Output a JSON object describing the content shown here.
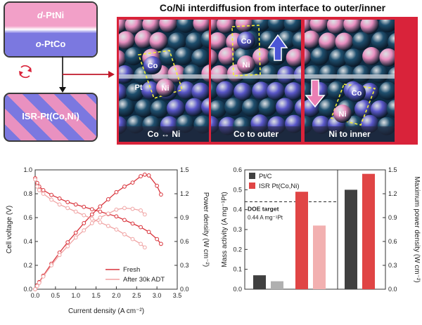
{
  "schematic": {
    "top_layer_prefix": "d",
    "top_layer_suffix": "-PtNi",
    "bottom_layer_prefix": "o",
    "bottom_layer_suffix": "-PtCo",
    "result_label": "ISR-Pt(Co,Ni)",
    "cycle_icon": "refresh-cycle-icon"
  },
  "interdiffusion": {
    "title": "Co/Ni interdiffusion from interface to outer/inner",
    "panels": [
      {
        "caption": "Co ↔ Ni",
        "labels": [
          "Co",
          "Ni",
          "Pt"
        ]
      },
      {
        "caption": "Co to outer",
        "labels": [
          "Co",
          "Ni"
        ]
      },
      {
        "caption": "Ni to inner",
        "labels": [
          "Co",
          "Ni"
        ]
      }
    ],
    "colors": {
      "pt": "#1f4f6e",
      "co": "#5a57c9",
      "ni": "#e98fc0",
      "arrow_up": "#4b55d6",
      "arrow_down": "#ea7fb5",
      "frame": "#d9233a"
    }
  },
  "chart_data": [
    {
      "type": "line",
      "xlabel": "Current density (A cm⁻²)",
      "ylabel": "Cell voltage (V)",
      "y2label": "Power density (W cm⁻²)",
      "xlim": [
        0,
        3.5
      ],
      "ylim": [
        0,
        1.0
      ],
      "y2lim": [
        0,
        1.5
      ],
      "xticks": [
        "0.0",
        "0.5",
        "1.0",
        "1.5",
        "2.0",
        "2.5",
        "3.0",
        "3.5"
      ],
      "yticks": [
        "0.0",
        "0.2",
        "0.4",
        "0.6",
        "0.8",
        "1.0"
      ],
      "y2ticks": [
        "0.0",
        "0.3",
        "0.6",
        "0.9",
        "1.2",
        "1.5"
      ],
      "legend_position": "bottom-right",
      "series": [
        {
          "name": "Fresh",
          "color": "#d9323a",
          "axis": "left",
          "x": [
            0,
            0.05,
            0.1,
            0.2,
            0.4,
            0.6,
            0.8,
            1.0,
            1.2,
            1.4,
            1.6,
            1.8,
            2.0,
            2.2,
            2.4,
            2.6,
            2.8,
            3.0,
            3.1
          ],
          "y": [
            0.93,
            0.89,
            0.86,
            0.83,
            0.79,
            0.76,
            0.73,
            0.71,
            0.69,
            0.67,
            0.65,
            0.63,
            0.61,
            0.58,
            0.55,
            0.52,
            0.48,
            0.42,
            0.38
          ]
        },
        {
          "name": "Fresh",
          "color": "#d9323a",
          "axis": "right",
          "x": [
            0,
            0.05,
            0.1,
            0.2,
            0.4,
            0.6,
            0.8,
            1.0,
            1.2,
            1.4,
            1.6,
            1.8,
            2.0,
            2.2,
            2.4,
            2.6,
            2.7,
            2.8,
            3.0,
            3.1
          ],
          "y": [
            0.0,
            0.05,
            0.09,
            0.17,
            0.32,
            0.46,
            0.59,
            0.71,
            0.83,
            0.94,
            1.04,
            1.13,
            1.22,
            1.29,
            1.34,
            1.42,
            1.44,
            1.43,
            1.3,
            1.19
          ]
        },
        {
          "name": "After 30k ADT",
          "color": "#f0a4a4",
          "axis": "left",
          "x": [
            0,
            0.05,
            0.1,
            0.2,
            0.4,
            0.6,
            0.8,
            1.0,
            1.2,
            1.4,
            1.6,
            1.8,
            2.0,
            2.2,
            2.4,
            2.6,
            2.7
          ],
          "y": [
            0.92,
            0.86,
            0.83,
            0.8,
            0.75,
            0.71,
            0.68,
            0.65,
            0.62,
            0.59,
            0.56,
            0.53,
            0.5,
            0.46,
            0.42,
            0.38,
            0.35
          ]
        },
        {
          "name": "After 30k ADT",
          "color": "#f0a4a4",
          "axis": "right",
          "x": [
            0,
            0.05,
            0.1,
            0.2,
            0.4,
            0.6,
            0.8,
            1.0,
            1.2,
            1.4,
            1.6,
            1.8,
            2.0,
            2.2,
            2.4,
            2.6,
            2.7
          ],
          "y": [
            0.0,
            0.04,
            0.08,
            0.16,
            0.3,
            0.43,
            0.54,
            0.65,
            0.74,
            0.83,
            0.9,
            0.95,
            1.0,
            1.02,
            1.01,
            0.99,
            0.94
          ]
        }
      ]
    },
    {
      "type": "bar",
      "ylabel": "Mass activity (A mg⁻¹Pt)",
      "y2label": "Maximum power density (W cm⁻²)",
      "ylim": [
        0,
        0.6
      ],
      "y2lim": [
        0,
        1.5
      ],
      "yticks": [
        "0.0",
        "0.1",
        "0.2",
        "0.3",
        "0.4",
        "0.5",
        "0.6"
      ],
      "y2ticks": [
        "0.0",
        "0.3",
        "0.6",
        "0.9",
        "1.2",
        "1.5"
      ],
      "legend_position": "top-left",
      "legend": [
        {
          "name": "Pt/C",
          "color": "#404040"
        },
        {
          "name": "ISR Pt(Co,Ni)",
          "color": "#e04545"
        }
      ],
      "annotation": {
        "title": "DOE target",
        "text": "0.44 A mg⁻¹Pt",
        "value": 0.44
      },
      "bars": [
        {
          "group": "mass_activity",
          "state": "Fresh",
          "series": "Pt/C",
          "axis": "left",
          "value": 0.07,
          "color": "#404040"
        },
        {
          "group": "mass_activity",
          "state": "After ADT",
          "series": "Pt/C",
          "axis": "left",
          "value": 0.04,
          "color": "#b0b0b0"
        },
        {
          "group": "mass_activity",
          "state": "Fresh",
          "series": "ISR Pt(Co,Ni)",
          "axis": "left",
          "value": 0.49,
          "color": "#e04545"
        },
        {
          "group": "mass_activity",
          "state": "After ADT",
          "series": "ISR Pt(Co,Ni)",
          "axis": "left",
          "value": 0.32,
          "color": "#f2b0b0"
        },
        {
          "group": "max_power",
          "series": "Pt/C",
          "axis": "right",
          "value": 1.25,
          "color": "#404040"
        },
        {
          "group": "max_power",
          "series": "ISR Pt(Co,Ni)",
          "axis": "right",
          "value": 1.45,
          "color": "#e04545"
        }
      ]
    }
  ]
}
